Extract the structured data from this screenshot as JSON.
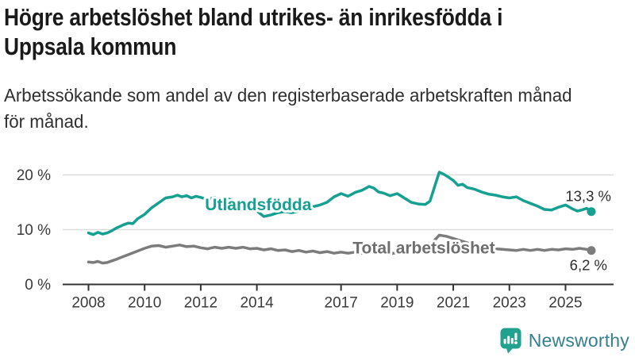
{
  "header": {
    "title_lines": [
      "Högre arbetslöshet bland utrikes- än inrikesfödda i",
      "Uppsala kommun"
    ],
    "subtitle_lines": [
      "Arbetssökande som andel av den registerbaserade arbetskraften månad",
      "för månad."
    ]
  },
  "footer": {
    "brand": "Newsworthy",
    "logo_icon": "bar-chart-speech-bubble-icon"
  },
  "colors": {
    "foreign_born_line": "#16a091",
    "total_line": "#7c7c7c",
    "total_label": "#6e6e6e",
    "grid": "#dcdcdc",
    "axis": "#333333",
    "tick_text": "#3a3a3a",
    "value_text": "#2e2e2e",
    "title_text": "#1a1a1a",
    "brand_text": "#34808e",
    "brand_icon": "#23a18f"
  },
  "chart_data": {
    "type": "line",
    "title": "Högre arbetslöshet bland utrikes- än inrikesfödda i Uppsala kommun",
    "subtitle": "Arbetssökande som andel av den registerbaserade arbetskraften månad för månad.",
    "unit": "%",
    "grid": true,
    "legend_position": "inline-labels",
    "xlim": [
      2007.1,
      2026.7
    ],
    "ylim": [
      0,
      21.5
    ],
    "x_ticks": [
      2008,
      2010,
      2012,
      2014,
      2017,
      2019,
      2021,
      2023,
      2025
    ],
    "x_tick_labels": [
      "2008",
      "2010",
      "2012",
      "2014",
      "2017",
      "2019",
      "2021",
      "2023",
      "2025"
    ],
    "y_ticks": [
      {
        "value": 0,
        "label": "0 %"
      },
      {
        "value": 10,
        "label": "10 %"
      },
      {
        "value": 20,
        "label": "20 %"
      }
    ],
    "series": [
      {
        "name": "Utlandsfödda",
        "color": "#16a091",
        "label_color": "#16a091",
        "end_label": "13,3 %",
        "end_value": 13.3,
        "label_pos": {
          "x": 2014.05,
          "y": 14.6
        },
        "points": [
          [
            2008.0,
            9.4
          ],
          [
            2008.17,
            9.1
          ],
          [
            2008.33,
            9.5
          ],
          [
            2008.5,
            9.2
          ],
          [
            2008.67,
            9.4
          ],
          [
            2008.83,
            9.8
          ],
          [
            2009.0,
            10.3
          ],
          [
            2009.25,
            10.9
          ],
          [
            2009.42,
            11.2
          ],
          [
            2009.58,
            11.1
          ],
          [
            2009.75,
            12.0
          ],
          [
            2010.0,
            12.8
          ],
          [
            2010.25,
            14.0
          ],
          [
            2010.5,
            14.9
          ],
          [
            2010.75,
            15.8
          ],
          [
            2011.0,
            16.0
          ],
          [
            2011.17,
            16.3
          ],
          [
            2011.33,
            16.0
          ],
          [
            2011.5,
            16.2
          ],
          [
            2011.67,
            15.8
          ],
          [
            2011.83,
            16.1
          ],
          [
            2012.0,
            15.9
          ],
          [
            2012.25,
            15.5
          ],
          [
            2012.5,
            15.9
          ],
          [
            2012.75,
            15.4
          ],
          [
            2013.0,
            15.6
          ],
          [
            2013.25,
            15.1
          ],
          [
            2013.5,
            14.7
          ],
          [
            2013.75,
            14.1
          ],
          [
            2014.0,
            13.4
          ],
          [
            2014.25,
            12.4
          ],
          [
            2014.5,
            12.7
          ],
          [
            2014.75,
            13.1
          ],
          [
            2015.0,
            13.3
          ],
          [
            2015.25,
            13.1
          ],
          [
            2015.5,
            13.4
          ],
          [
            2015.75,
            13.7
          ],
          [
            2016.0,
            14.2
          ],
          [
            2016.25,
            14.5
          ],
          [
            2016.5,
            15.0
          ],
          [
            2016.75,
            16.0
          ],
          [
            2017.0,
            16.6
          ],
          [
            2017.25,
            16.1
          ],
          [
            2017.5,
            16.8
          ],
          [
            2017.75,
            17.2
          ],
          [
            2018.0,
            17.9
          ],
          [
            2018.17,
            17.6
          ],
          [
            2018.33,
            16.9
          ],
          [
            2018.5,
            16.7
          ],
          [
            2018.75,
            16.2
          ],
          [
            2019.0,
            16.6
          ],
          [
            2019.25,
            15.8
          ],
          [
            2019.5,
            15.0
          ],
          [
            2019.75,
            14.7
          ],
          [
            2020.0,
            14.6
          ],
          [
            2020.17,
            15.2
          ],
          [
            2020.33,
            17.8
          ],
          [
            2020.5,
            20.5
          ],
          [
            2020.67,
            20.1
          ],
          [
            2020.83,
            19.6
          ],
          [
            2021.0,
            19.0
          ],
          [
            2021.17,
            18.1
          ],
          [
            2021.33,
            18.3
          ],
          [
            2021.5,
            17.7
          ],
          [
            2021.75,
            17.4
          ],
          [
            2022.0,
            16.9
          ],
          [
            2022.25,
            16.5
          ],
          [
            2022.5,
            16.3
          ],
          [
            2022.75,
            16.0
          ],
          [
            2023.0,
            15.8
          ],
          [
            2023.25,
            16.0
          ],
          [
            2023.5,
            15.3
          ],
          [
            2023.75,
            14.8
          ],
          [
            2024.0,
            14.3
          ],
          [
            2024.25,
            13.7
          ],
          [
            2024.5,
            13.6
          ],
          [
            2024.75,
            14.1
          ],
          [
            2025.0,
            14.5
          ],
          [
            2025.25,
            13.8
          ],
          [
            2025.42,
            13.4
          ],
          [
            2025.58,
            13.6
          ],
          [
            2025.75,
            13.9
          ],
          [
            2025.92,
            13.3
          ]
        ]
      },
      {
        "name": "Total arbetslöshet",
        "color": "#7c7c7c",
        "label_color": "#6e6e6e",
        "end_label": "6,2 %",
        "end_value": 6.2,
        "label_pos": {
          "x": 2019.95,
          "y": 6.7
        },
        "points": [
          [
            2008.0,
            4.1
          ],
          [
            2008.17,
            4.0
          ],
          [
            2008.33,
            4.2
          ],
          [
            2008.5,
            3.9
          ],
          [
            2008.67,
            4.0
          ],
          [
            2008.83,
            4.3
          ],
          [
            2009.0,
            4.6
          ],
          [
            2009.25,
            5.1
          ],
          [
            2009.5,
            5.6
          ],
          [
            2009.75,
            6.1
          ],
          [
            2010.0,
            6.6
          ],
          [
            2010.25,
            7.0
          ],
          [
            2010.5,
            7.1
          ],
          [
            2010.75,
            6.8
          ],
          [
            2011.0,
            7.0
          ],
          [
            2011.25,
            7.2
          ],
          [
            2011.5,
            6.9
          ],
          [
            2011.75,
            7.0
          ],
          [
            2012.0,
            6.7
          ],
          [
            2012.25,
            6.5
          ],
          [
            2012.5,
            6.8
          ],
          [
            2012.75,
            6.6
          ],
          [
            2013.0,
            6.8
          ],
          [
            2013.25,
            6.6
          ],
          [
            2013.5,
            6.8
          ],
          [
            2013.75,
            6.5
          ],
          [
            2014.0,
            6.6
          ],
          [
            2014.25,
            6.3
          ],
          [
            2014.5,
            6.5
          ],
          [
            2014.75,
            6.2
          ],
          [
            2015.0,
            6.3
          ],
          [
            2015.25,
            6.0
          ],
          [
            2015.5,
            6.2
          ],
          [
            2015.75,
            5.9
          ],
          [
            2016.0,
            6.1
          ],
          [
            2016.25,
            5.8
          ],
          [
            2016.5,
            6.0
          ],
          [
            2016.75,
            5.7
          ],
          [
            2017.0,
            5.9
          ],
          [
            2017.25,
            5.7
          ],
          [
            2017.5,
            5.9
          ],
          [
            2017.75,
            5.7
          ],
          [
            2018.0,
            5.9
          ],
          [
            2018.25,
            5.6
          ],
          [
            2018.5,
            5.8
          ],
          [
            2018.75,
            5.6
          ],
          [
            2019.0,
            5.8
          ],
          [
            2019.25,
            5.7
          ],
          [
            2019.5,
            5.9
          ],
          [
            2019.75,
            5.8
          ],
          [
            2020.0,
            6.1
          ],
          [
            2020.25,
            7.6
          ],
          [
            2020.5,
            9.0
          ],
          [
            2020.75,
            8.8
          ],
          [
            2021.0,
            8.4
          ],
          [
            2021.25,
            8.0
          ],
          [
            2021.5,
            7.6
          ],
          [
            2021.75,
            7.2
          ],
          [
            2022.0,
            7.0
          ],
          [
            2022.25,
            6.7
          ],
          [
            2022.5,
            6.5
          ],
          [
            2022.75,
            6.4
          ],
          [
            2023.0,
            6.3
          ],
          [
            2023.25,
            6.2
          ],
          [
            2023.5,
            6.4
          ],
          [
            2023.75,
            6.2
          ],
          [
            2024.0,
            6.4
          ],
          [
            2024.25,
            6.2
          ],
          [
            2024.5,
            6.4
          ],
          [
            2024.75,
            6.3
          ],
          [
            2025.0,
            6.5
          ],
          [
            2025.25,
            6.4
          ],
          [
            2025.5,
            6.6
          ],
          [
            2025.75,
            6.4
          ],
          [
            2025.92,
            6.2
          ]
        ]
      }
    ]
  }
}
